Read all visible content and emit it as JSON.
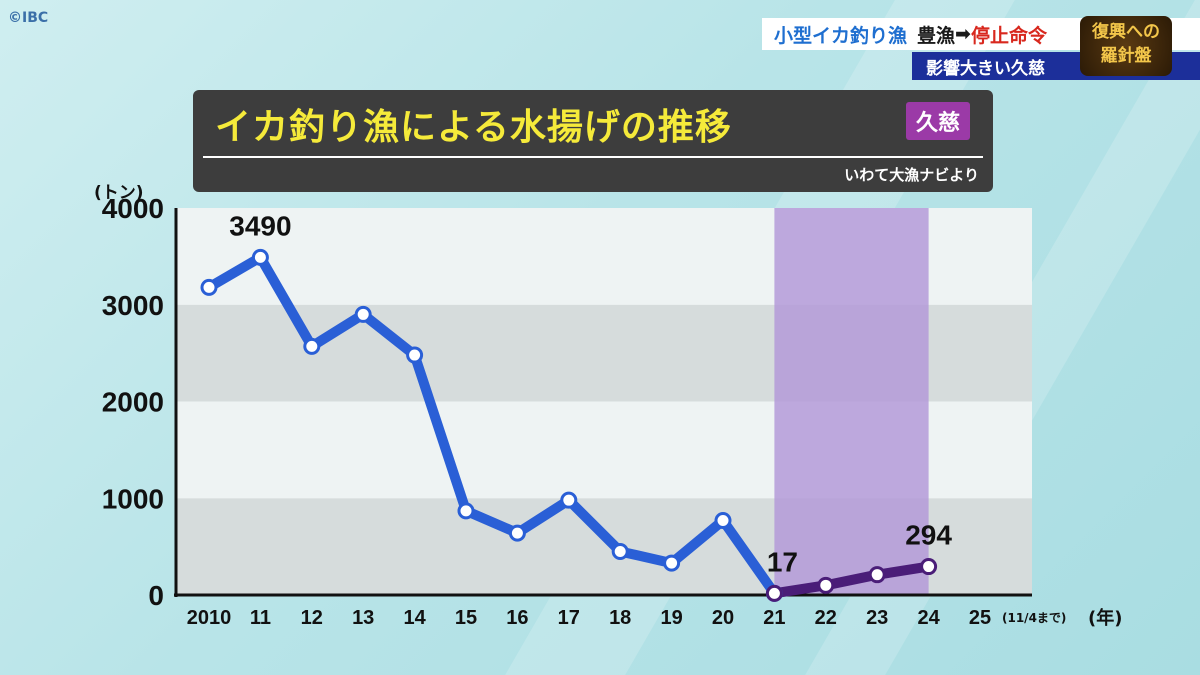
{
  "header": {
    "logo": "©IBC",
    "topic_part1": "小型イカ釣り漁",
    "topic_part2": "豊漁",
    "topic_arrow": "➡",
    "topic_part3": "停止命令",
    "subtitle": "影響大きい久慈",
    "corner_line1": "復興への",
    "corner_line2": "羅針盤"
  },
  "title": {
    "text": "イカ釣り漁による水揚げの推移",
    "tag": "久慈",
    "source": "いわて大漁ナビより"
  },
  "chart_data": {
    "type": "line",
    "ylabel": "(トン)",
    "xlabel": "(年)",
    "ylim": [
      0,
      4000
    ],
    "yticks": [
      "0",
      "1000",
      "2000",
      "3000",
      "4000"
    ],
    "categories": [
      "2010",
      "11",
      "12",
      "13",
      "14",
      "15",
      "16",
      "17",
      "18",
      "19",
      "20",
      "21",
      "22",
      "23",
      "24",
      "25"
    ],
    "last_category_note": "(11/4まで)",
    "highlight_range": [
      "21",
      "24"
    ],
    "colors": {
      "series_blue": "#2a5fd6",
      "series_purple": "#4a1d78",
      "highlight": "#b49ad8"
    },
    "series": [
      {
        "values": [
          3180,
          3490,
          2570,
          2900,
          2480,
          870,
          640,
          980,
          450,
          330,
          770,
          17,
          null,
          null,
          null,
          null
        ]
      },
      {
        "values": [
          null,
          null,
          null,
          null,
          null,
          null,
          null,
          null,
          null,
          null,
          null,
          17,
          100,
          210,
          294,
          null
        ]
      }
    ],
    "annotations": [
      {
        "category": "11",
        "label": "3490"
      },
      {
        "category": "21",
        "label": "17"
      },
      {
        "category": "24",
        "label": "294"
      }
    ]
  }
}
